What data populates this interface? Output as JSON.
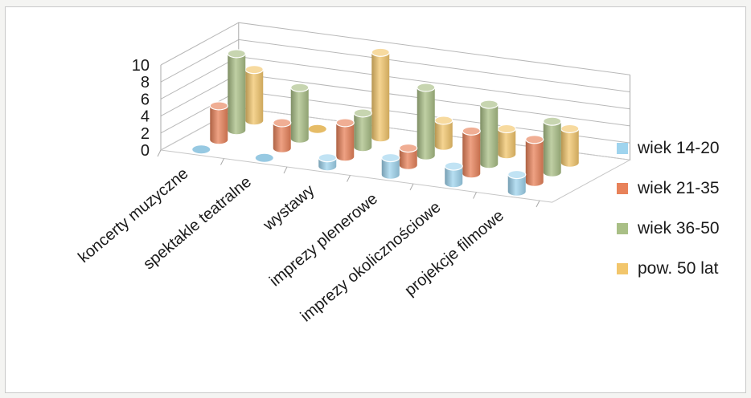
{
  "chart_data": {
    "type": "bar",
    "variant": "3d-cylinder",
    "title": "",
    "xlabel": "",
    "ylabel": "",
    "ylim": [
      0,
      10
    ],
    "yticks": [
      "0",
      "2",
      "4",
      "6",
      "8",
      "10"
    ],
    "grid": true,
    "legend_position": "right",
    "categories": [
      "koncerty muzyczne",
      "spektakle teatralne",
      "wystawy",
      "imprezy plenerowe",
      "imprezy okolicznościowe",
      "projekcje filmowe"
    ],
    "series": [
      {
        "name": "wiek 14-20",
        "color": "#9fd4ee",
        "values": [
          0,
          0,
          1,
          2,
          2,
          2
        ]
      },
      {
        "name": "wiek 21-35",
        "color": "#e8825a",
        "values": [
          4,
          3,
          4,
          2,
          5,
          5
        ]
      },
      {
        "name": "wiek 36-50",
        "color": "#a9bf86",
        "values": [
          9,
          6,
          4,
          8,
          7,
          6
        ]
      },
      {
        "name": "pow. 50 lat",
        "color": "#f2c66c",
        "values": [
          6,
          0,
          10,
          3,
          3,
          4
        ]
      }
    ]
  }
}
